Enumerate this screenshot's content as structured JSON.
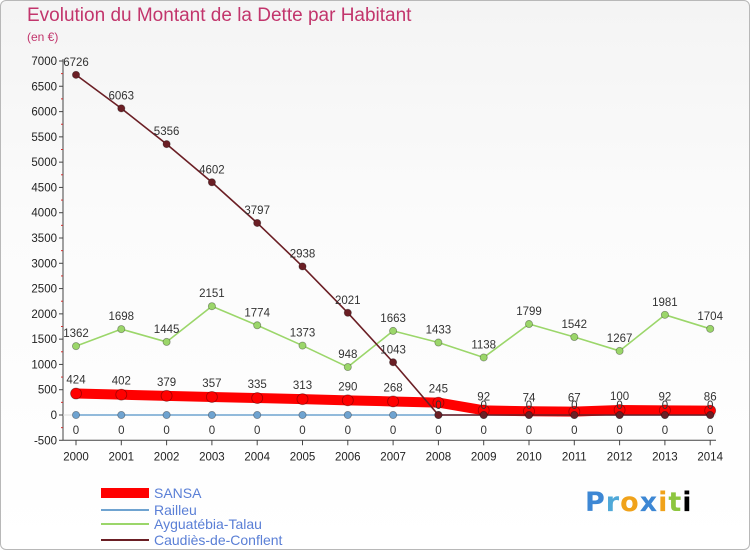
{
  "chart_data": {
    "type": "line",
    "title": "Evolution du Montant de la Dette par Habitant",
    "subtitle": "(en €)",
    "x": [
      "2000",
      "2001",
      "2002",
      "2003",
      "2004",
      "2005",
      "2006",
      "2007",
      "2008",
      "2009",
      "2010",
      "2011",
      "2012",
      "2013",
      "2014"
    ],
    "ylim": [
      -500,
      7000
    ],
    "yticks": [
      "-500",
      "0",
      "500",
      "1000",
      "1500",
      "2000",
      "2500",
      "3000",
      "3500",
      "4000",
      "4500",
      "5000",
      "5500",
      "6000",
      "6500",
      "7000"
    ],
    "grid": false,
    "legend_position": "bottom-left",
    "series": [
      {
        "name": "SANSA",
        "color": "#ff0000",
        "values": [
          424,
          402,
          379,
          357,
          335,
          313,
          290,
          268,
          245,
          92,
          74,
          67,
          100,
          92,
          86
        ],
        "labels": [
          "424",
          "402",
          "379",
          "357",
          "335",
          "313",
          "290",
          "268",
          "245",
          "92",
          "74",
          "67",
          "100",
          "92",
          "86"
        ]
      },
      {
        "name": "Railleu",
        "color": "#6fa3d0",
        "values": [
          0,
          0,
          0,
          0,
          0,
          0,
          0,
          0,
          0,
          0,
          0,
          0,
          0,
          0,
          0
        ],
        "labels": [
          "0",
          "0",
          "0",
          "0",
          "0",
          "0",
          "0",
          "0",
          "0",
          "0",
          "0",
          "0",
          "0",
          "0",
          "0"
        ]
      },
      {
        "name": "Ayguatébia-Talau",
        "color": "#9bd66a",
        "values": [
          1362,
          1698,
          1445,
          2151,
          1774,
          1373,
          948,
          1663,
          1433,
          1138,
          1799,
          1542,
          1267,
          1981,
          1704
        ],
        "labels": [
          "1362",
          "1698",
          "1445",
          "2151",
          "1774",
          "1373",
          "948",
          "1663",
          "1433",
          "1138",
          "1799",
          "1542",
          "1267",
          "1981",
          "1704"
        ]
      },
      {
        "name": "Caudiès-de-Conflent",
        "color": "#6b1f25",
        "values": [
          6726,
          6063,
          5356,
          4602,
          3797,
          2938,
          2021,
          1043,
          0,
          0,
          0,
          0,
          0,
          0,
          0
        ],
        "labels": [
          "6726",
          "6063",
          "5356",
          "4602",
          "3797",
          "2938",
          "2021",
          "1043",
          "0",
          "0",
          "0",
          "0",
          "0",
          "0",
          "0"
        ]
      }
    ]
  },
  "logo": {
    "letters": [
      "P",
      "r",
      "o",
      "x",
      "i",
      "t",
      "i"
    ]
  }
}
